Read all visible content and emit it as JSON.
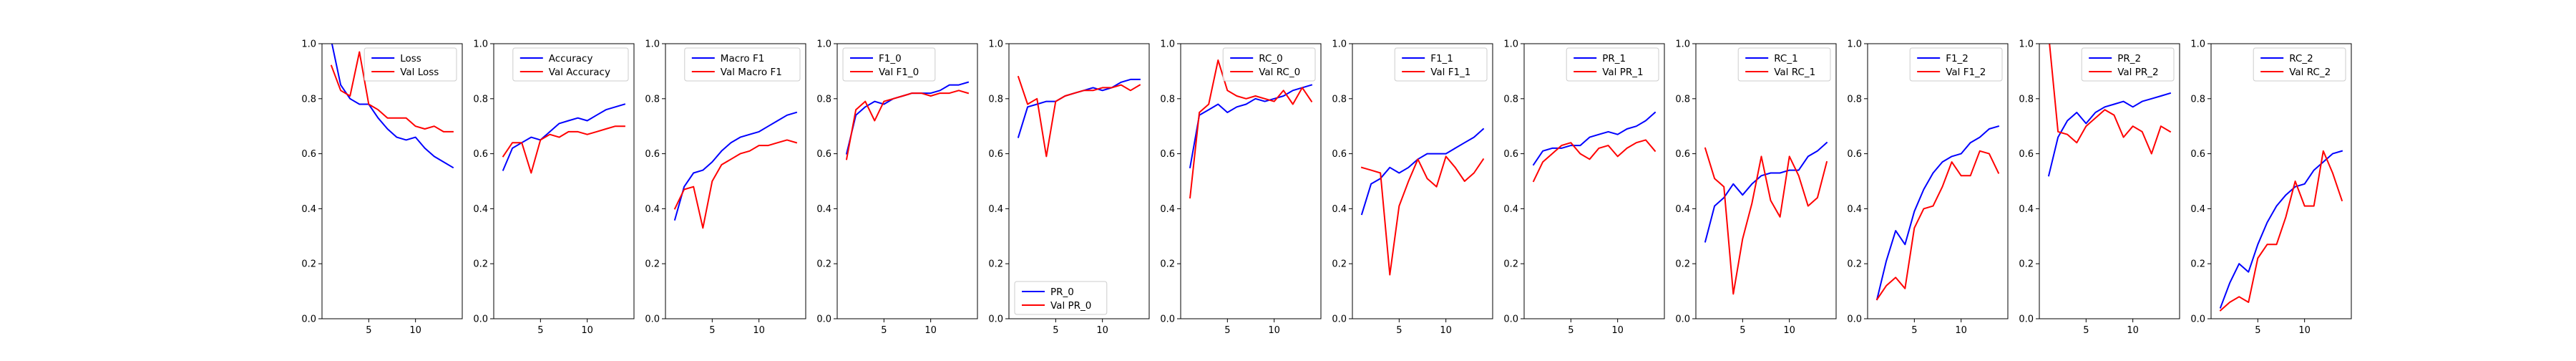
{
  "figure": {
    "background": "#ffffff"
  },
  "colors": {
    "train": "#0000ff",
    "val": "#ff0000"
  },
  "chart_data": [
    {
      "type": "line",
      "legend_loc": "upper right",
      "xlim": [
        0,
        15
      ],
      "ylim": [
        0,
        1
      ],
      "xticks": [
        5,
        10
      ],
      "yticks": [
        0.0,
        0.2,
        0.4,
        0.6,
        0.8,
        1.0
      ],
      "x": [
        1,
        2,
        3,
        4,
        5,
        6,
        7,
        8,
        9,
        10,
        11,
        12,
        13,
        14
      ],
      "series": [
        {
          "name": "Loss",
          "color": "#0000ff",
          "values": [
            1.01,
            0.85,
            0.8,
            0.78,
            0.78,
            0.73,
            0.69,
            0.66,
            0.65,
            0.66,
            0.62,
            0.59,
            0.57,
            0.55
          ]
        },
        {
          "name": "Val Loss",
          "color": "#ff0000",
          "values": [
            0.92,
            0.83,
            0.81,
            0.97,
            0.78,
            0.76,
            0.73,
            0.73,
            0.73,
            0.7,
            0.69,
            0.7,
            0.68,
            0.68
          ]
        }
      ]
    },
    {
      "type": "line",
      "legend_loc": "upper right",
      "xlim": [
        0,
        15
      ],
      "ylim": [
        0,
        1
      ],
      "xticks": [
        5,
        10
      ],
      "yticks": [
        0.0,
        0.2,
        0.4,
        0.6,
        0.8,
        1.0
      ],
      "x": [
        1,
        2,
        3,
        4,
        5,
        6,
        7,
        8,
        9,
        10,
        11,
        12,
        13,
        14
      ],
      "series": [
        {
          "name": "Accuracy",
          "color": "#0000ff",
          "values": [
            0.54,
            0.62,
            0.64,
            0.66,
            0.65,
            0.68,
            0.71,
            0.72,
            0.73,
            0.72,
            0.74,
            0.76,
            0.77,
            0.78
          ]
        },
        {
          "name": "Val Accuracy",
          "color": "#ff0000",
          "values": [
            0.59,
            0.64,
            0.64,
            0.53,
            0.65,
            0.67,
            0.66,
            0.68,
            0.68,
            0.67,
            0.68,
            0.69,
            0.7,
            0.7
          ]
        }
      ]
    },
    {
      "type": "line",
      "legend_loc": "upper right",
      "xlim": [
        0,
        15
      ],
      "ylim": [
        0,
        1
      ],
      "xticks": [
        5,
        10
      ],
      "yticks": [
        0.0,
        0.2,
        0.4,
        0.6,
        0.8,
        1.0
      ],
      "x": [
        1,
        2,
        3,
        4,
        5,
        6,
        7,
        8,
        9,
        10,
        11,
        12,
        13,
        14
      ],
      "series": [
        {
          "name": "Macro F1",
          "color": "#0000ff",
          "values": [
            0.36,
            0.48,
            0.53,
            0.54,
            0.57,
            0.61,
            0.64,
            0.66,
            0.67,
            0.68,
            0.7,
            0.72,
            0.74,
            0.75
          ]
        },
        {
          "name": "Val Macro F1",
          "color": "#ff0000",
          "values": [
            0.4,
            0.47,
            0.48,
            0.33,
            0.5,
            0.56,
            0.58,
            0.6,
            0.61,
            0.63,
            0.63,
            0.64,
            0.65,
            0.64
          ]
        }
      ]
    },
    {
      "type": "line",
      "legend_loc": "upper left",
      "xlim": [
        0,
        15
      ],
      "ylim": [
        0,
        1
      ],
      "xticks": [
        5,
        10
      ],
      "yticks": [
        0.0,
        0.2,
        0.4,
        0.6,
        0.8,
        1.0
      ],
      "x": [
        1,
        2,
        3,
        4,
        5,
        6,
        7,
        8,
        9,
        10,
        11,
        12,
        13,
        14
      ],
      "series": [
        {
          "name": "F1_0",
          "color": "#0000ff",
          "values": [
            0.6,
            0.74,
            0.77,
            0.79,
            0.78,
            0.8,
            0.81,
            0.82,
            0.82,
            0.82,
            0.83,
            0.85,
            0.85,
            0.86
          ]
        },
        {
          "name": "Val F1_0",
          "color": "#ff0000",
          "values": [
            0.58,
            0.76,
            0.79,
            0.72,
            0.79,
            0.8,
            0.81,
            0.82,
            0.82,
            0.81,
            0.82,
            0.82,
            0.83,
            0.82
          ]
        }
      ]
    },
    {
      "type": "line",
      "legend_loc": "lower left",
      "xlim": [
        0,
        15
      ],
      "ylim": [
        0,
        1
      ],
      "xticks": [
        5,
        10
      ],
      "yticks": [
        0.0,
        0.2,
        0.4,
        0.6,
        0.8,
        1.0
      ],
      "x": [
        1,
        2,
        3,
        4,
        5,
        6,
        7,
        8,
        9,
        10,
        11,
        12,
        13,
        14
      ],
      "series": [
        {
          "name": "PR_0",
          "color": "#0000ff",
          "values": [
            0.66,
            0.77,
            0.78,
            0.79,
            0.79,
            0.81,
            0.82,
            0.83,
            0.84,
            0.83,
            0.84,
            0.86,
            0.87,
            0.87
          ]
        },
        {
          "name": "Val PR_0",
          "color": "#ff0000",
          "values": [
            0.88,
            0.78,
            0.8,
            0.59,
            0.79,
            0.81,
            0.82,
            0.83,
            0.83,
            0.84,
            0.84,
            0.85,
            0.83,
            0.85
          ]
        }
      ]
    },
    {
      "type": "line",
      "legend_loc": "upper right",
      "xlim": [
        0,
        15
      ],
      "ylim": [
        0,
        1
      ],
      "xticks": [
        5,
        10
      ],
      "yticks": [
        0.0,
        0.2,
        0.4,
        0.6,
        0.8,
        1.0
      ],
      "x": [
        1,
        2,
        3,
        4,
        5,
        6,
        7,
        8,
        9,
        10,
        11,
        12,
        13,
        14
      ],
      "series": [
        {
          "name": "RC_0",
          "color": "#0000ff",
          "values": [
            0.55,
            0.74,
            0.76,
            0.78,
            0.75,
            0.77,
            0.78,
            0.8,
            0.79,
            0.8,
            0.81,
            0.83,
            0.84,
            0.85
          ]
        },
        {
          "name": "Val RC_0",
          "color": "#ff0000",
          "values": [
            0.44,
            0.75,
            0.78,
            0.94,
            0.83,
            0.81,
            0.8,
            0.81,
            0.8,
            0.79,
            0.83,
            0.78,
            0.84,
            0.79
          ]
        }
      ]
    },
    {
      "type": "line",
      "legend_loc": "upper right",
      "xlim": [
        0,
        15
      ],
      "ylim": [
        0,
        1
      ],
      "xticks": [
        5,
        10
      ],
      "yticks": [
        0.0,
        0.2,
        0.4,
        0.6,
        0.8,
        1.0
      ],
      "x": [
        1,
        2,
        3,
        4,
        5,
        6,
        7,
        8,
        9,
        10,
        11,
        12,
        13,
        14
      ],
      "series": [
        {
          "name": "F1_1",
          "color": "#0000ff",
          "values": [
            0.38,
            0.49,
            0.51,
            0.55,
            0.53,
            0.55,
            0.58,
            0.6,
            0.6,
            0.6,
            0.62,
            0.64,
            0.66,
            0.69
          ]
        },
        {
          "name": "Val F1_1",
          "color": "#ff0000",
          "values": [
            0.55,
            0.54,
            0.53,
            0.16,
            0.41,
            0.5,
            0.58,
            0.51,
            0.48,
            0.59,
            0.55,
            0.5,
            0.53,
            0.58
          ]
        }
      ]
    },
    {
      "type": "line",
      "legend_loc": "upper right",
      "xlim": [
        0,
        15
      ],
      "ylim": [
        0,
        1
      ],
      "xticks": [
        5,
        10
      ],
      "yticks": [
        0.0,
        0.2,
        0.4,
        0.6,
        0.8,
        1.0
      ],
      "x": [
        1,
        2,
        3,
        4,
        5,
        6,
        7,
        8,
        9,
        10,
        11,
        12,
        13,
        14
      ],
      "series": [
        {
          "name": "PR_1",
          "color": "#0000ff",
          "values": [
            0.56,
            0.61,
            0.62,
            0.62,
            0.63,
            0.63,
            0.66,
            0.67,
            0.68,
            0.67,
            0.69,
            0.7,
            0.72,
            0.75
          ]
        },
        {
          "name": "Val PR_1",
          "color": "#ff0000",
          "values": [
            0.5,
            0.57,
            0.6,
            0.63,
            0.64,
            0.6,
            0.58,
            0.62,
            0.63,
            0.59,
            0.62,
            0.64,
            0.65,
            0.61
          ]
        }
      ]
    },
    {
      "type": "line",
      "legend_loc": "upper right",
      "xlim": [
        0,
        15
      ],
      "ylim": [
        0,
        1
      ],
      "xticks": [
        5,
        10
      ],
      "yticks": [
        0.0,
        0.2,
        0.4,
        0.6,
        0.8,
        1.0
      ],
      "x": [
        1,
        2,
        3,
        4,
        5,
        6,
        7,
        8,
        9,
        10,
        11,
        12,
        13,
        14
      ],
      "series": [
        {
          "name": "RC_1",
          "color": "#0000ff",
          "values": [
            0.28,
            0.41,
            0.44,
            0.49,
            0.45,
            0.49,
            0.52,
            0.53,
            0.53,
            0.54,
            0.54,
            0.59,
            0.61,
            0.64
          ]
        },
        {
          "name": "Val RC_1",
          "color": "#ff0000",
          "values": [
            0.62,
            0.51,
            0.48,
            0.09,
            0.29,
            0.42,
            0.59,
            0.43,
            0.37,
            0.59,
            0.52,
            0.41,
            0.44,
            0.57
          ]
        }
      ]
    },
    {
      "type": "line",
      "legend_loc": "upper right",
      "xlim": [
        0,
        15
      ],
      "ylim": [
        0,
        1
      ],
      "xticks": [
        5,
        10
      ],
      "yticks": [
        0.0,
        0.2,
        0.4,
        0.6,
        0.8,
        1.0
      ],
      "x": [
        1,
        2,
        3,
        4,
        5,
        6,
        7,
        8,
        9,
        10,
        11,
        12,
        13,
        14
      ],
      "series": [
        {
          "name": "F1_2",
          "color": "#0000ff",
          "values": [
            0.07,
            0.21,
            0.32,
            0.27,
            0.39,
            0.47,
            0.53,
            0.57,
            0.59,
            0.6,
            0.64,
            0.66,
            0.69,
            0.7
          ]
        },
        {
          "name": "Val F1_2",
          "color": "#ff0000",
          "values": [
            0.07,
            0.12,
            0.15,
            0.11,
            0.33,
            0.4,
            0.41,
            0.48,
            0.57,
            0.52,
            0.52,
            0.61,
            0.6,
            0.53
          ]
        }
      ]
    },
    {
      "type": "line",
      "legend_loc": "upper right",
      "xlim": [
        0,
        15
      ],
      "ylim": [
        0,
        1
      ],
      "xticks": [
        5,
        10
      ],
      "yticks": [
        0.0,
        0.2,
        0.4,
        0.6,
        0.8,
        1.0
      ],
      "x": [
        1,
        2,
        3,
        4,
        5,
        6,
        7,
        8,
        9,
        10,
        11,
        12,
        13,
        14
      ],
      "series": [
        {
          "name": "PR_2",
          "color": "#0000ff",
          "values": [
            0.52,
            0.66,
            0.72,
            0.75,
            0.71,
            0.75,
            0.77,
            0.78,
            0.79,
            0.77,
            0.79,
            0.8,
            0.81,
            0.82
          ]
        },
        {
          "name": "Val PR_2",
          "color": "#ff0000",
          "values": [
            1.03,
            0.68,
            0.67,
            0.64,
            0.7,
            0.73,
            0.76,
            0.74,
            0.66,
            0.7,
            0.68,
            0.6,
            0.7,
            0.68
          ]
        }
      ]
    },
    {
      "type": "line",
      "legend_loc": "upper right",
      "xlim": [
        0,
        15
      ],
      "ylim": [
        0,
        1
      ],
      "xticks": [
        5,
        10
      ],
      "yticks": [
        0.0,
        0.2,
        0.4,
        0.6,
        0.8,
        1.0
      ],
      "x": [
        1,
        2,
        3,
        4,
        5,
        6,
        7,
        8,
        9,
        10,
        11,
        12,
        13,
        14
      ],
      "series": [
        {
          "name": "RC_2",
          "color": "#0000ff",
          "values": [
            0.04,
            0.13,
            0.2,
            0.17,
            0.27,
            0.35,
            0.41,
            0.45,
            0.48,
            0.49,
            0.54,
            0.57,
            0.6,
            0.61
          ]
        },
        {
          "name": "Val RC_2",
          "color": "#ff0000",
          "values": [
            0.03,
            0.06,
            0.08,
            0.06,
            0.22,
            0.27,
            0.27,
            0.37,
            0.5,
            0.41,
            0.41,
            0.61,
            0.53,
            0.43
          ]
        }
      ]
    }
  ]
}
